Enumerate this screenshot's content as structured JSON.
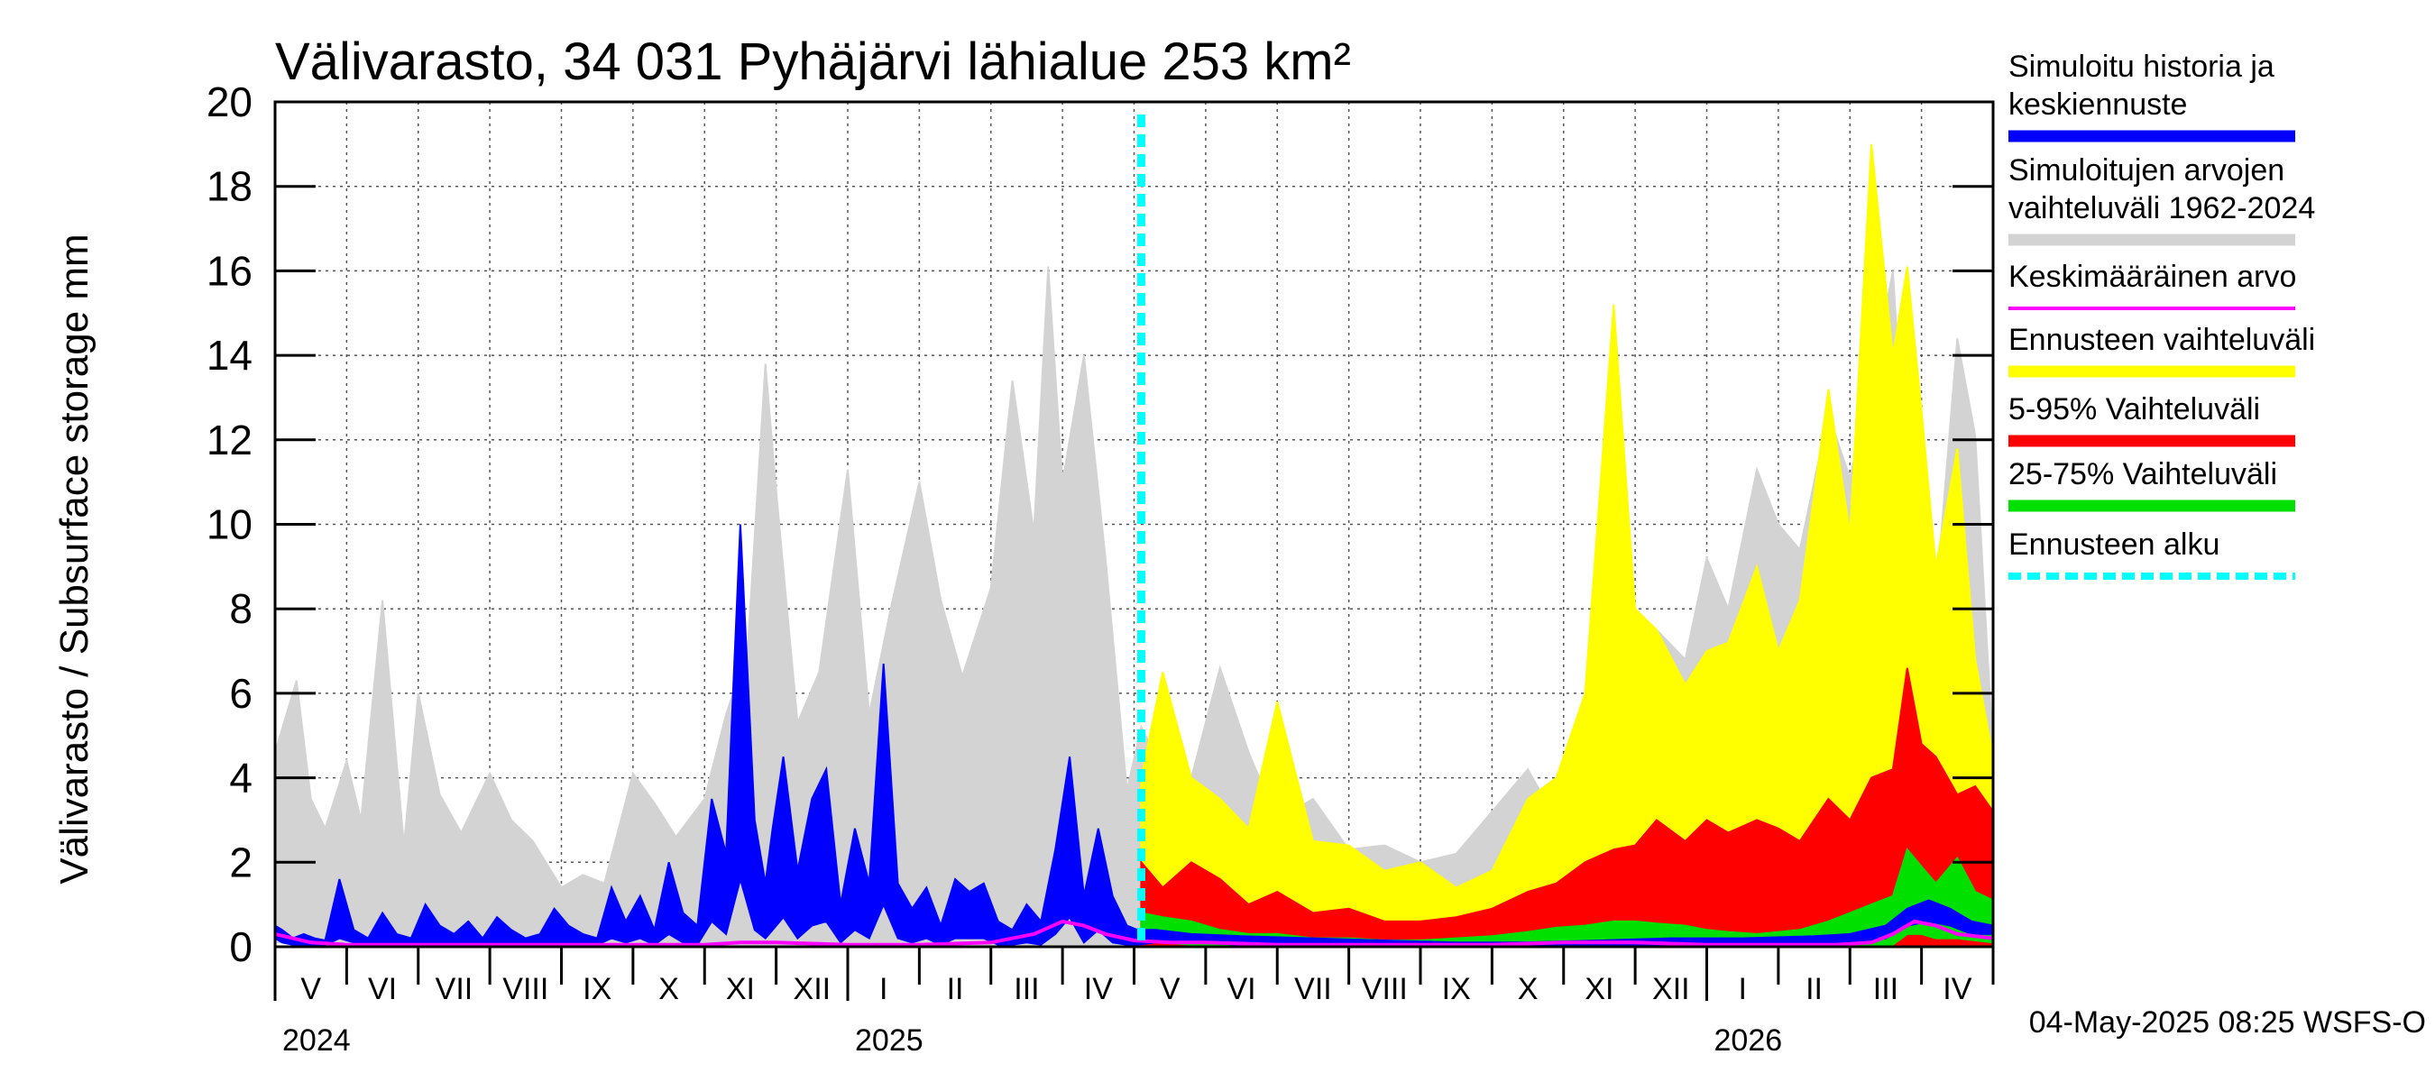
{
  "chart_data": {
    "type": "area",
    "title": "Välivarasto, 34 031 Pyhäjärvi lähialue 253 km²",
    "ylabel": "Välivarasto / Subsurface storage  mm",
    "xlabel": "",
    "ylim": [
      0,
      20
    ],
    "yticks": [
      "0",
      "2",
      "4",
      "6",
      "8",
      "10",
      "12",
      "14",
      "16",
      "18",
      "20"
    ],
    "grid": true,
    "months": [
      {
        "label": "V",
        "index": 0
      },
      {
        "label": "VI",
        "index": 1
      },
      {
        "label": "VII",
        "index": 2
      },
      {
        "label": "VIII",
        "index": 3
      },
      {
        "label": "IX",
        "index": 4
      },
      {
        "label": "X",
        "index": 5
      },
      {
        "label": "XI",
        "index": 6
      },
      {
        "label": "XII",
        "index": 7
      },
      {
        "label": "I",
        "index": 8
      },
      {
        "label": "II",
        "index": 9
      },
      {
        "label": "III",
        "index": 10
      },
      {
        "label": "IV",
        "index": 11
      },
      {
        "label": "V",
        "index": 12
      },
      {
        "label": "VI",
        "index": 13
      },
      {
        "label": "VII",
        "index": 14
      },
      {
        "label": "VIII",
        "index": 15
      },
      {
        "label": "IX",
        "index": 16
      },
      {
        "label": "X",
        "index": 17
      },
      {
        "label": "XI",
        "index": 18
      },
      {
        "label": "XII",
        "index": 19
      },
      {
        "label": "I",
        "index": 20
      },
      {
        "label": "II",
        "index": 21
      },
      {
        "label": "III",
        "index": 22
      },
      {
        "label": "IV",
        "index": 23
      }
    ],
    "years": [
      {
        "label": "2024",
        "month_index": 0
      },
      {
        "label": "2025",
        "month_index": 8
      },
      {
        "label": "2026",
        "month_index": 20
      }
    ],
    "forecast_start_month": 12.1,
    "series": [
      {
        "name": "Simuloitujen arvojen vaihteluväli 1962-2024",
        "kind": "band",
        "color": "#d3d3d3",
        "x": [
          0,
          0.3,
          0.5,
          0.7,
          1.0,
          1.2,
          1.5,
          1.8,
          2.0,
          2.3,
          2.6,
          3.0,
          3.3,
          3.6,
          4.0,
          4.3,
          4.6,
          5.0,
          5.3,
          5.6,
          6.0,
          6.3,
          6.6,
          6.85,
          7.0,
          7.3,
          7.6,
          8.0,
          8.3,
          8.6,
          9.0,
          9.3,
          9.6,
          10.0,
          10.3,
          10.6,
          10.8,
          11.0,
          11.3,
          11.6,
          11.9,
          12.1,
          12.4,
          12.8,
          13.2,
          13.6,
          14.0,
          14.5,
          15.0,
          15.5,
          16.0,
          16.5,
          17.0,
          17.5,
          17.9,
          18.3,
          18.7,
          19.0,
          19.3,
          19.7,
          20.0,
          20.3,
          20.7,
          21.0,
          21.3,
          21.7,
          22.0,
          22.3,
          22.6,
          22.8,
          23.0,
          23.2,
          23.5,
          23.75,
          24.0
        ],
        "upper": [
          4.6,
          6.3,
          3.5,
          2.8,
          4.4,
          3.0,
          8.2,
          2.4,
          6.0,
          3.6,
          2.7,
          4.1,
          3.0,
          2.5,
          1.4,
          1.7,
          1.5,
          4.1,
          3.4,
          2.6,
          3.5,
          5.5,
          7.0,
          13.8,
          10.8,
          5.3,
          6.5,
          11.3,
          5.5,
          8.0,
          11.0,
          8.2,
          6.4,
          8.5,
          13.4,
          9.8,
          16.1,
          11.0,
          14.0,
          9.2,
          3.7,
          5.2,
          4.2,
          4.0,
          6.6,
          4.6,
          3.0,
          3.5,
          2.3,
          2.4,
          2.0,
          2.2,
          3.2,
          4.2,
          3.0,
          4.0,
          5.8,
          6.0,
          7.5,
          6.8,
          9.2,
          8.0,
          11.3,
          10.0,
          9.4,
          12.6,
          11.1,
          13.3,
          16.0,
          10.5,
          12.1,
          8.2,
          14.4,
          12.1,
          4.6
        ],
        "lower": [
          0.1,
          0.1,
          0.05,
          0.05,
          0.05,
          0.05,
          0.05,
          0.05,
          0.05,
          0.05,
          0.05,
          0.05,
          0.05,
          0.05,
          0.05,
          0.05,
          0.05,
          0.05,
          0.05,
          0.05,
          0.05,
          0.05,
          0.05,
          0.05,
          0.05,
          0.05,
          0.05,
          0.05,
          0.05,
          0.05,
          0.05,
          0.05,
          0.05,
          0.05,
          0.05,
          0.05,
          0.05,
          0.05,
          0.05,
          0.05,
          0.05,
          0.05,
          0.05,
          0.05,
          0.05,
          0.05,
          0.05,
          0.05,
          0.05,
          0.05,
          0.05,
          0.05,
          0.05,
          0.05,
          0.05,
          0.05,
          0.05,
          0.05,
          0.05,
          0.05,
          0.05,
          0.05,
          0.05,
          0.05,
          0.05,
          0.05,
          0.05,
          0.05,
          0.05,
          0.05,
          0.05,
          0.05,
          0.05,
          0.05,
          0.05
        ]
      },
      {
        "name": "Ennusteen vaihteluväli",
        "kind": "band",
        "color": "#ffff00",
        "x": [
          12.1,
          12.4,
          12.8,
          13.2,
          13.6,
          14.0,
          14.5,
          15.0,
          15.5,
          16.0,
          16.5,
          17.0,
          17.5,
          17.9,
          18.3,
          18.7,
          19.0,
          19.3,
          19.7,
          20.0,
          20.3,
          20.7,
          21.0,
          21.3,
          21.7,
          22.0,
          22.3,
          22.6,
          22.8,
          23.0,
          23.2,
          23.5,
          23.75,
          24.0
        ],
        "upper": [
          4.0,
          6.5,
          4.0,
          3.5,
          2.8,
          5.8,
          2.5,
          2.4,
          1.8,
          2.0,
          1.4,
          1.8,
          3.5,
          4.0,
          6.0,
          15.2,
          8.0,
          7.5,
          6.2,
          7.0,
          7.2,
          9.0,
          7.0,
          8.2,
          13.2,
          9.8,
          19.0,
          14.0,
          16.1,
          12.7,
          9.0,
          11.8,
          6.8,
          4.5
        ],
        "lower": [
          0.05,
          0.05,
          0.05,
          0.05,
          0.05,
          0.05,
          0.05,
          0.05,
          0.05,
          0.05,
          0.05,
          0.05,
          0.05,
          0.05,
          0.05,
          0.05,
          0.05,
          0.05,
          0.05,
          0.05,
          0.05,
          0.05,
          0.05,
          0.05,
          0.05,
          0.05,
          0.05,
          0.05,
          0.05,
          0.05,
          0.05,
          0.05,
          0.05,
          0.05
        ]
      },
      {
        "name": "5-95% Vaihteluväli",
        "kind": "band",
        "color": "#ff0000",
        "x": [
          12.1,
          12.4,
          12.8,
          13.2,
          13.6,
          14.0,
          14.5,
          15.0,
          15.5,
          16.0,
          16.5,
          17.0,
          17.5,
          17.9,
          18.3,
          18.7,
          19.0,
          19.3,
          19.7,
          20.0,
          20.3,
          20.7,
          21.0,
          21.3,
          21.7,
          22.0,
          22.3,
          22.6,
          22.8,
          23.0,
          23.2,
          23.5,
          23.75,
          24.0
        ],
        "upper": [
          2.0,
          1.4,
          2.0,
          1.6,
          1.0,
          1.3,
          0.8,
          0.9,
          0.6,
          0.6,
          0.7,
          0.9,
          1.3,
          1.5,
          2.0,
          2.3,
          2.4,
          3.0,
          2.5,
          3.0,
          2.7,
          3.0,
          2.8,
          2.5,
          3.5,
          3.0,
          4.0,
          4.2,
          6.6,
          4.8,
          4.5,
          3.6,
          3.8,
          3.2
        ],
        "lower": [
          0.05,
          0.05,
          0.05,
          0.05,
          0.05,
          0.05,
          0.05,
          0.05,
          0.05,
          0.05,
          0.05,
          0.05,
          0.05,
          0.05,
          0.05,
          0.05,
          0.05,
          0.05,
          0.05,
          0.05,
          0.05,
          0.05,
          0.05,
          0.05,
          0.05,
          0.05,
          0.05,
          0.05,
          0.05,
          0.05,
          0.05,
          0.05,
          0.05,
          0.05
        ]
      },
      {
        "name": "25-75% Vaihteluväli",
        "kind": "band",
        "color": "#00e000",
        "x": [
          12.1,
          12.4,
          12.8,
          13.2,
          13.6,
          14.0,
          14.5,
          15.0,
          15.5,
          16.0,
          16.5,
          17.0,
          17.5,
          17.9,
          18.3,
          18.7,
          19.0,
          19.3,
          19.7,
          20.0,
          20.3,
          20.7,
          21.0,
          21.3,
          21.7,
          22.0,
          22.3,
          22.6,
          22.8,
          23.0,
          23.2,
          23.5,
          23.75,
          24.0
        ],
        "upper": [
          0.8,
          0.7,
          0.6,
          0.4,
          0.3,
          0.3,
          0.2,
          0.2,
          0.15,
          0.15,
          0.2,
          0.25,
          0.35,
          0.45,
          0.5,
          0.6,
          0.6,
          0.55,
          0.5,
          0.4,
          0.35,
          0.3,
          0.35,
          0.4,
          0.6,
          0.8,
          1.0,
          1.2,
          2.3,
          1.9,
          1.5,
          2.1,
          1.3,
          1.1
        ],
        "lower": [
          0.1,
          0.1,
          0.05,
          0.05,
          0.05,
          0.05,
          0.05,
          0.05,
          0.05,
          0.05,
          0.05,
          0.05,
          0.05,
          0.05,
          0.05,
          0.05,
          0.05,
          0.05,
          0.05,
          0.05,
          0.05,
          0.05,
          0.05,
          0.05,
          0.05,
          0.05,
          0.05,
          0.05,
          0.3,
          0.3,
          0.2,
          0.2,
          0.15,
          0.1
        ]
      },
      {
        "name": "Simuloitu historia ja keskiennuste",
        "kind": "band",
        "color": "#0000ff",
        "x": [
          0,
          0.1,
          0.25,
          0.4,
          0.55,
          0.7,
          0.9,
          1.1,
          1.3,
          1.5,
          1.7,
          1.9,
          2.1,
          2.3,
          2.5,
          2.7,
          2.9,
          3.1,
          3.3,
          3.5,
          3.7,
          3.9,
          4.1,
          4.3,
          4.5,
          4.7,
          4.9,
          5.1,
          5.3,
          5.5,
          5.7,
          5.9,
          6.1,
          6.3,
          6.5,
          6.7,
          6.85,
          6.95,
          7.1,
          7.3,
          7.5,
          7.7,
          7.9,
          8.1,
          8.3,
          8.5,
          8.7,
          8.9,
          9.1,
          9.3,
          9.5,
          9.7,
          9.9,
          10.1,
          10.3,
          10.5,
          10.7,
          10.9,
          11.1,
          11.3,
          11.5,
          11.7,
          11.9,
          12.05,
          12.3,
          12.8,
          13.5,
          14.5,
          15.5,
          16.5,
          17.5,
          18.5,
          19.5,
          20.5,
          21.5,
          22.0,
          22.5,
          22.8,
          23.1,
          23.4,
          23.7,
          24.0
        ],
        "upper": [
          0.5,
          0.4,
          0.2,
          0.3,
          0.2,
          0.15,
          1.6,
          0.4,
          0.2,
          0.8,
          0.3,
          0.2,
          1.0,
          0.5,
          0.3,
          0.6,
          0.2,
          0.7,
          0.4,
          0.2,
          0.3,
          0.9,
          0.5,
          0.3,
          0.2,
          1.4,
          0.6,
          1.2,
          0.4,
          2.0,
          0.8,
          0.5,
          3.5,
          2.2,
          10.0,
          3.0,
          1.5,
          2.8,
          4.5,
          1.8,
          3.5,
          4.2,
          1.0,
          2.8,
          1.5,
          6.7,
          1.5,
          0.9,
          1.4,
          0.5,
          1.6,
          1.3,
          1.5,
          0.6,
          0.4,
          1.0,
          0.6,
          2.3,
          4.5,
          1.2,
          2.8,
          1.2,
          0.5,
          0.4,
          0.4,
          0.3,
          0.25,
          0.2,
          0.15,
          0.1,
          0.1,
          0.15,
          0.2,
          0.2,
          0.25,
          0.3,
          0.5,
          0.9,
          1.1,
          0.9,
          0.6,
          0.5
        ],
        "lower": [
          0.2,
          0.1,
          0.05,
          0.05,
          0.05,
          0.05,
          0.2,
          0.1,
          0.05,
          0.1,
          0.05,
          0.05,
          0.1,
          0.05,
          0.05,
          0.1,
          0.05,
          0.1,
          0.05,
          0.05,
          0.05,
          0.1,
          0.05,
          0.05,
          0.05,
          0.2,
          0.1,
          0.2,
          0.05,
          0.3,
          0.1,
          0.05,
          0.6,
          0.3,
          1.6,
          0.4,
          0.2,
          0.4,
          0.7,
          0.2,
          0.5,
          0.6,
          0.1,
          0.4,
          0.2,
          1.0,
          0.2,
          0.1,
          0.2,
          0.05,
          0.2,
          0.2,
          0.2,
          0.05,
          0.05,
          0.1,
          0.05,
          0.3,
          0.7,
          0.1,
          0.4,
          0.1,
          0.05,
          0.05,
          0.1,
          0.1,
          0.05,
          0.05,
          0.05,
          0.05,
          0.05,
          0.05,
          0.05,
          0.05,
          0.05,
          0.1,
          0.2,
          0.5,
          0.6,
          0.5,
          0.3,
          0.3
        ]
      },
      {
        "name": "Keskimääräinen arvo",
        "kind": "line",
        "color": "#ff00ff",
        "x": [
          0,
          0.5,
          1.0,
          2.0,
          3.0,
          4.0,
          5.0,
          6.0,
          6.5,
          7.0,
          8.0,
          9.0,
          10.0,
          10.6,
          11.0,
          11.3,
          11.6,
          12.0,
          12.5,
          13.0,
          14.0,
          15.0,
          16.0,
          17.0,
          18.0,
          19.0,
          20.0,
          21.0,
          21.8,
          22.3,
          22.6,
          22.9,
          23.2,
          23.5,
          24.0
        ],
        "values": [
          0.3,
          0.1,
          0.05,
          0.05,
          0.05,
          0.05,
          0.05,
          0.05,
          0.1,
          0.1,
          0.05,
          0.05,
          0.1,
          0.3,
          0.6,
          0.5,
          0.3,
          0.15,
          0.1,
          0.1,
          0.05,
          0.05,
          0.05,
          0.05,
          0.1,
          0.1,
          0.05,
          0.05,
          0.05,
          0.1,
          0.3,
          0.6,
          0.5,
          0.3,
          0.2
        ]
      }
    ],
    "legend": [
      {
        "label": "Simuloitu historia ja keskiennuste",
        "color": "#0000ff",
        "style": "solid"
      },
      {
        "label": "Simuloitujen arvojen vaihteluväli 1962-2024",
        "color": "#d3d3d3",
        "style": "solid"
      },
      {
        "label": "Keskimääräinen arvo",
        "color": "#ff00ff",
        "style": "thin"
      },
      {
        "label": "Ennusteen vaihteluväli",
        "color": "#ffff00",
        "style": "solid"
      },
      {
        "label": "5-95% Vaihteluväli",
        "color": "#ff0000",
        "style": "solid"
      },
      {
        "label": "25-75% Vaihteluväli",
        "color": "#00e000",
        "style": "solid"
      },
      {
        "label": "Ennusteen alku",
        "color": "#00ffff",
        "style": "dashed"
      }
    ],
    "legend_placement": "right",
    "footer": "04-May-2025 08:25 WSFS-O"
  }
}
